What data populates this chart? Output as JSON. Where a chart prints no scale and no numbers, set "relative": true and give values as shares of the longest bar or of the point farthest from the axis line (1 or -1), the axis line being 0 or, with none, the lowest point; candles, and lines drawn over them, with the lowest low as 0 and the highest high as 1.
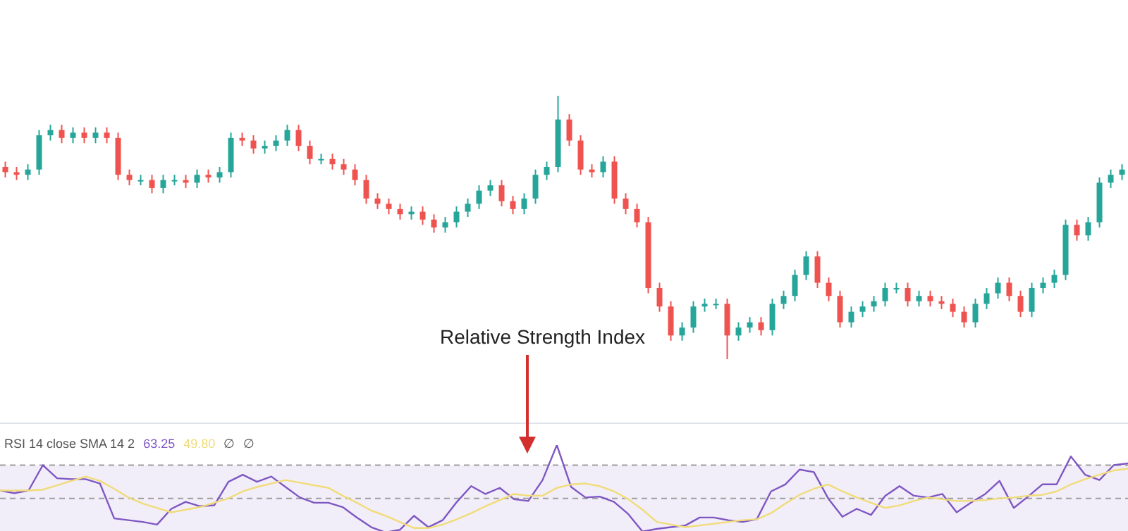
{
  "chart_data": [
    {
      "type": "candlestick",
      "relative": true,
      "annotations": [
        "Relative Strength Index"
      ],
      "categories": [
        null,
        null,
        null,
        null,
        null,
        null,
        null,
        null,
        null,
        null,
        null,
        null,
        null,
        null,
        null,
        null,
        null,
        null,
        null,
        null,
        null,
        null,
        null,
        null,
        null,
        null,
        null,
        null,
        null,
        null,
        null,
        null,
        null,
        null,
        null,
        null,
        null,
        null,
        null,
        null,
        null,
        null,
        null,
        null,
        null,
        null,
        null,
        null,
        null,
        null,
        null,
        null,
        null,
        null,
        null,
        null,
        null,
        null,
        null,
        null,
        null,
        null,
        null,
        null,
        null,
        null,
        null,
        null,
        null,
        null,
        null,
        null,
        null,
        null,
        null,
        null,
        null,
        null,
        null,
        null,
        null,
        null,
        null,
        null,
        null,
        null,
        null,
        null,
        null,
        null,
        null,
        null,
        null,
        null,
        null,
        null,
        null,
        null,
        null,
        null
      ],
      "ohlc": [
        [
          0.73,
          0.75,
          0.69,
          0.71
        ],
        [
          0.71,
          0.73,
          0.68,
          0.7
        ],
        [
          0.7,
          0.74,
          0.68,
          0.72
        ],
        [
          0.72,
          0.87,
          0.7,
          0.85
        ],
        [
          0.85,
          0.89,
          0.83,
          0.87
        ],
        [
          0.87,
          0.89,
          0.82,
          0.84
        ],
        [
          0.84,
          0.88,
          0.82,
          0.86
        ],
        [
          0.86,
          0.88,
          0.82,
          0.84
        ],
        [
          0.84,
          0.88,
          0.82,
          0.86
        ],
        [
          0.86,
          0.88,
          0.82,
          0.84
        ],
        [
          0.84,
          0.86,
          0.68,
          0.7
        ],
        [
          0.7,
          0.72,
          0.66,
          0.68
        ],
        [
          0.68,
          0.7,
          0.66,
          0.68
        ],
        [
          0.68,
          0.7,
          0.63,
          0.65
        ],
        [
          0.65,
          0.7,
          0.63,
          0.68
        ],
        [
          0.68,
          0.7,
          0.66,
          0.68
        ],
        [
          0.68,
          0.7,
          0.65,
          0.67
        ],
        [
          0.67,
          0.72,
          0.65,
          0.7
        ],
        [
          0.7,
          0.72,
          0.67,
          0.69
        ],
        [
          0.69,
          0.73,
          0.67,
          0.71
        ],
        [
          0.71,
          0.86,
          0.69,
          0.84
        ],
        [
          0.84,
          0.86,
          0.81,
          0.83
        ],
        [
          0.83,
          0.85,
          0.78,
          0.8
        ],
        [
          0.8,
          0.83,
          0.78,
          0.81
        ],
        [
          0.81,
          0.85,
          0.79,
          0.83
        ],
        [
          0.83,
          0.89,
          0.81,
          0.87
        ],
        [
          0.87,
          0.89,
          0.79,
          0.81
        ],
        [
          0.81,
          0.83,
          0.74,
          0.76
        ],
        [
          0.76,
          0.78,
          0.74,
          0.76
        ],
        [
          0.76,
          0.78,
          0.72,
          0.74
        ],
        [
          0.74,
          0.76,
          0.7,
          0.72
        ],
        [
          0.72,
          0.74,
          0.66,
          0.68
        ],
        [
          0.68,
          0.7,
          0.59,
          0.61
        ],
        [
          0.61,
          0.63,
          0.57,
          0.59
        ],
        [
          0.59,
          0.61,
          0.55,
          0.57
        ],
        [
          0.57,
          0.59,
          0.53,
          0.55
        ],
        [
          0.55,
          0.58,
          0.53,
          0.56
        ],
        [
          0.56,
          0.58,
          0.51,
          0.53
        ],
        [
          0.53,
          0.55,
          0.48,
          0.5
        ],
        [
          0.5,
          0.54,
          0.48,
          0.52
        ],
        [
          0.52,
          0.58,
          0.5,
          0.56
        ],
        [
          0.56,
          0.61,
          0.54,
          0.59
        ],
        [
          0.59,
          0.66,
          0.57,
          0.64
        ],
        [
          0.64,
          0.68,
          0.62,
          0.66
        ],
        [
          0.66,
          0.68,
          0.58,
          0.6
        ],
        [
          0.6,
          0.62,
          0.55,
          0.57
        ],
        [
          0.57,
          0.63,
          0.55,
          0.61
        ],
        [
          0.61,
          0.72,
          0.59,
          0.7
        ],
        [
          0.7,
          0.75,
          0.68,
          0.73
        ],
        [
          0.73,
          1.0,
          0.71,
          0.91
        ],
        [
          0.91,
          0.93,
          0.81,
          0.83
        ],
        [
          0.83,
          0.85,
          0.7,
          0.72
        ],
        [
          0.72,
          0.74,
          0.69,
          0.71
        ],
        [
          0.71,
          0.77,
          0.69,
          0.75
        ],
        [
          0.75,
          0.77,
          0.59,
          0.61
        ],
        [
          0.61,
          0.63,
          0.55,
          0.57
        ],
        [
          0.57,
          0.59,
          0.5,
          0.52
        ],
        [
          0.52,
          0.54,
          0.25,
          0.27
        ],
        [
          0.27,
          0.29,
          0.18,
          0.2
        ],
        [
          0.2,
          0.22,
          0.07,
          0.09
        ],
        [
          0.09,
          0.14,
          0.07,
          0.12
        ],
        [
          0.12,
          0.22,
          0.1,
          0.2
        ],
        [
          0.2,
          0.23,
          0.18,
          0.21
        ],
        [
          0.21,
          0.23,
          0.19,
          0.21
        ],
        [
          0.21,
          0.23,
          0.0,
          0.09
        ],
        [
          0.09,
          0.14,
          0.07,
          0.12
        ],
        [
          0.12,
          0.16,
          0.1,
          0.14
        ],
        [
          0.14,
          0.16,
          0.09,
          0.11
        ],
        [
          0.11,
          0.23,
          0.09,
          0.21
        ],
        [
          0.21,
          0.26,
          0.19,
          0.24
        ],
        [
          0.24,
          0.34,
          0.22,
          0.32
        ],
        [
          0.32,
          0.41,
          0.3,
          0.39
        ],
        [
          0.39,
          0.41,
          0.27,
          0.29
        ],
        [
          0.29,
          0.31,
          0.22,
          0.24
        ],
        [
          0.24,
          0.26,
          0.12,
          0.14
        ],
        [
          0.14,
          0.2,
          0.12,
          0.18
        ],
        [
          0.18,
          0.22,
          0.16,
          0.2
        ],
        [
          0.2,
          0.24,
          0.18,
          0.22
        ],
        [
          0.22,
          0.29,
          0.2,
          0.27
        ],
        [
          0.27,
          0.29,
          0.25,
          0.27
        ],
        [
          0.27,
          0.29,
          0.2,
          0.22
        ],
        [
          0.22,
          0.26,
          0.2,
          0.24
        ],
        [
          0.24,
          0.26,
          0.2,
          0.22
        ],
        [
          0.22,
          0.24,
          0.19,
          0.21
        ],
        [
          0.21,
          0.23,
          0.16,
          0.18
        ],
        [
          0.18,
          0.2,
          0.12,
          0.14
        ],
        [
          0.14,
          0.23,
          0.12,
          0.21
        ],
        [
          0.21,
          0.27,
          0.19,
          0.25
        ],
        [
          0.25,
          0.31,
          0.23,
          0.29
        ],
        [
          0.29,
          0.31,
          0.22,
          0.24
        ],
        [
          0.24,
          0.26,
          0.16,
          0.18
        ],
        [
          0.18,
          0.29,
          0.16,
          0.27
        ],
        [
          0.27,
          0.31,
          0.25,
          0.29
        ],
        [
          0.29,
          0.34,
          0.27,
          0.32
        ],
        [
          0.32,
          0.53,
          0.3,
          0.51
        ],
        [
          0.51,
          0.53,
          0.45,
          0.47
        ],
        [
          0.47,
          0.54,
          0.45,
          0.52
        ],
        [
          0.52,
          0.69,
          0.5,
          0.67
        ],
        [
          0.67,
          0.72,
          0.65,
          0.7
        ],
        [
          0.7,
          0.74,
          0.68,
          0.72
        ]
      ]
    },
    {
      "type": "line",
      "relative": true,
      "title": "RSI 14 close SMA 14 2",
      "annotations": [
        "∅",
        "∅"
      ],
      "categories": [
        null,
        null,
        null,
        null,
        null,
        null,
        null,
        null,
        null,
        null,
        null,
        null,
        null,
        null,
        null,
        null,
        null,
        null,
        null,
        null,
        null,
        null,
        null,
        null,
        null,
        null,
        null,
        null,
        null,
        null,
        null,
        null,
        null,
        null,
        null,
        null,
        null,
        null,
        null,
        null,
        null,
        null,
        null,
        null,
        null,
        null,
        null,
        null,
        null,
        null,
        null,
        null,
        null,
        null,
        null,
        null,
        null,
        null,
        null,
        null,
        null,
        null,
        null,
        null,
        null,
        null,
        null,
        null,
        null,
        null,
        null,
        null,
        null,
        null,
        null,
        null,
        null,
        null,
        null,
        null
      ],
      "bands": [
        {
          "axis": "y",
          "from": 0,
          "to": 0.77,
          "color": "#7e57c2"
        }
      ],
      "ref_lines": [
        {
          "axis": "y",
          "value": 0.77,
          "color": "#9e9e9e",
          "line_style": "dashed"
        },
        {
          "axis": "y",
          "value": 0.39,
          "color": "#9e9e9e",
          "line_style": "dashed"
        }
      ],
      "series": [
        {
          "name": "63.25",
          "color": "#7e57c2",
          "values": [
            0.48,
            0.45,
            0.48,
            0.77,
            0.62,
            0.61,
            0.61,
            0.56,
            0.16,
            0.14,
            0.12,
            0.09,
            0.27,
            0.35,
            0.3,
            0.31,
            0.58,
            0.66,
            0.58,
            0.64,
            0.52,
            0.4,
            0.34,
            0.34,
            0.29,
            0.17,
            0.06,
            0,
            0.03,
            0.19,
            0.06,
            0.14,
            0.35,
            0.53,
            0.44,
            0.51,
            0.38,
            0.36,
            0.6,
            1,
            0.52,
            0.4,
            0.41,
            0.35,
            0.21,
            0.01,
            0.04,
            0.06,
            0.08,
            0.17,
            0.17,
            0.14,
            0.12,
            0.15,
            0.47,
            0.55,
            0.72,
            0.69,
            0.39,
            0.18,
            0.27,
            0.2,
            0.42,
            0.53,
            0.42,
            0.4,
            0.44,
            0.23,
            0.34,
            0.44,
            0.59,
            0.28,
            0.41,
            0.55,
            0.55,
            0.87,
            0.66,
            0.6,
            0.77,
            0.79
          ]
        },
        {
          "name": "49.80",
          "color": "#f0dc78",
          "values": [
            0.48,
            0.48,
            0.48,
            0.49,
            0.54,
            0.59,
            0.64,
            0.59,
            0.5,
            0.4,
            0.33,
            0.28,
            0.23,
            0.26,
            0.29,
            0.34,
            0.39,
            0.47,
            0.52,
            0.56,
            0.6,
            0.57,
            0.54,
            0.51,
            0.42,
            0.34,
            0.25,
            0.19,
            0.12,
            0.05,
            0.05,
            0.09,
            0.15,
            0.22,
            0.3,
            0.37,
            0.44,
            0.42,
            0.42,
            0.51,
            0.55,
            0.56,
            0.53,
            0.47,
            0.38,
            0.26,
            0.12,
            0.09,
            0.06,
            0.08,
            0.1,
            0.12,
            0.14,
            0.15,
            0.22,
            0.33,
            0.43,
            0.5,
            0.55,
            0.47,
            0.4,
            0.34,
            0.28,
            0.31,
            0.36,
            0.4,
            0.38,
            0.36,
            0.36,
            0.37,
            0.39,
            0.4,
            0.42,
            0.43,
            0.47,
            0.55,
            0.61,
            0.66,
            0.71,
            0.73
          ]
        }
      ]
    }
  ]
}
